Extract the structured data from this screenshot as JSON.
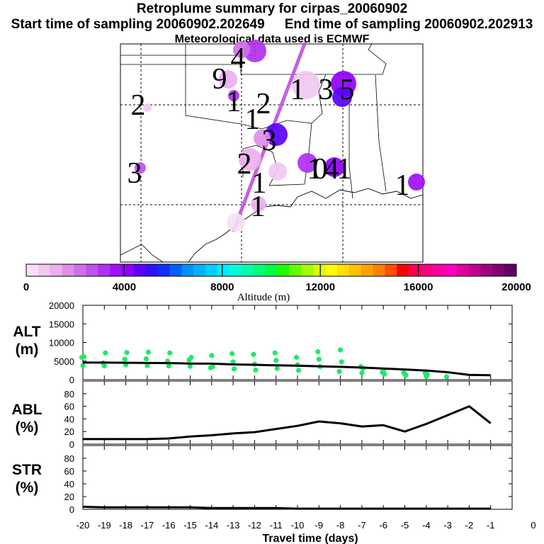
{
  "title": "Retroplume summary for cirpas_20060902",
  "start_text": "Start time of sampling 20060902.202649",
  "end_text": "End time of sampling 20060902.202913",
  "met_text": "Meteorological data used is ECMWF",
  "colorbar": {
    "label": "Altitude (m)",
    "ticks": [
      "0",
      "4000",
      "8000",
      "12000",
      "16000",
      "20000"
    ],
    "colors": [
      "#f7e0f7",
      "#f1c8f1",
      "#ebb0ed",
      "#e08ee8",
      "#d070e8",
      "#c050f0",
      "#b030f4",
      "#a010f8",
      "#9000ff",
      "#5a00ff",
      "#3010ff",
      "#1030ff",
      "#0060ff",
      "#0090ff",
      "#00b0ff",
      "#00d0ff",
      "#00ecff",
      "#00ffd8",
      "#00ffa8",
      "#00ff78",
      "#00ff40",
      "#20ff00",
      "#60ff00",
      "#a0ff00",
      "#d8ff00",
      "#ffff00",
      "#ffe000",
      "#ffc000",
      "#ffa000",
      "#ff8000",
      "#ff5000",
      "#ff0000",
      "#ff0050",
      "#ff0080",
      "#ff00a0",
      "#ff00c0",
      "#e000a0",
      "#c00090",
      "#a00080",
      "#800070",
      "#600060"
    ]
  },
  "chart_data": [
    {
      "type": "scatter",
      "name": "plume-map",
      "labels": [
        "4",
        "2",
        "9",
        "1",
        "2",
        "1",
        "3",
        "2",
        "1",
        "3",
        "5",
        "4",
        "3",
        "1",
        "1",
        "0",
        "1",
        "1",
        "1"
      ],
      "path_color": "#c050e0"
    },
    {
      "type": "line+scatter",
      "name": "alt",
      "ylabel": [
        "ALT",
        "(m)"
      ],
      "yticks": [
        "20000",
        "15000",
        "10000",
        "5000",
        "0"
      ],
      "ylim": [
        0,
        20000
      ],
      "xlim": [
        -20,
        0
      ],
      "x": [
        -20,
        -19,
        -18,
        -17,
        -16,
        -15,
        -14,
        -13,
        -12,
        -11,
        -10,
        -9,
        -8,
        -7,
        -6,
        -5,
        -4,
        -3,
        -2,
        -1
      ],
      "values": [
        4600,
        4600,
        4550,
        4500,
        4450,
        4350,
        4300,
        4100,
        4000,
        3850,
        3750,
        3600,
        3450,
        3250,
        3000,
        2750,
        2450,
        2000,
        1300,
        1200
      ],
      "point_color": "#22e86a",
      "scatter_values": [
        6000,
        3800,
        6200,
        4500,
        3700,
        7200,
        5500,
        4000,
        7300,
        5600,
        3800,
        7400,
        5000,
        3700,
        7200,
        5300,
        3600,
        6000,
        3200,
        6500,
        3500,
        7000,
        4800,
        2900,
        6800,
        4200,
        2600,
        7200,
        5200,
        3000,
        6000,
        4000,
        2500,
        7500,
        5500,
        3500,
        2200,
        8000,
        4800,
        3500,
        1800,
        3000,
        2000,
        2500,
        1500,
        2000,
        1500,
        1200,
        1800,
        900,
        1400,
        800
      ]
    },
    {
      "type": "line",
      "name": "abl",
      "ylabel": [
        "ABL",
        "(%)"
      ],
      "yticks": [
        "80",
        "60",
        "40",
        "20",
        "0"
      ],
      "ylim": [
        0,
        100
      ],
      "xlim": [
        -20,
        0
      ],
      "x": [
        -20,
        -19,
        -18,
        -17,
        -16,
        -15,
        -14,
        -13,
        -12,
        -11,
        -10,
        -9,
        -8,
        -7,
        -6,
        -5,
        -4,
        -3,
        -2,
        -1
      ],
      "values": [
        8,
        8,
        8,
        8,
        9,
        12,
        14,
        17,
        19,
        24,
        29,
        36,
        33,
        28,
        30,
        20,
        32,
        46,
        60,
        33
      ]
    },
    {
      "type": "line",
      "name": "str",
      "ylabel": [
        "STR",
        "(%)"
      ],
      "yticks": [
        "80",
        "60",
        "40",
        "20",
        "0"
      ],
      "ylim": [
        0,
        100
      ],
      "xlim": [
        -20,
        0
      ],
      "x": [
        -20,
        -19,
        -18,
        -17,
        -16,
        -15,
        -14,
        -13,
        -12,
        -11,
        -10,
        -9,
        -8,
        -7,
        -6,
        -5,
        -4,
        -3,
        -2,
        -1
      ],
      "values": [
        4,
        3,
        3,
        3,
        3,
        3,
        2,
        2,
        2,
        2,
        1,
        1,
        1,
        1,
        1,
        1,
        1,
        1,
        1,
        1
      ]
    }
  ],
  "xaxis": {
    "label": "Travel time (days)",
    "ticks": [
      "-20",
      "-19",
      "-18",
      "-17",
      "-16",
      "-15",
      "-14",
      "-13",
      "-12",
      "-11",
      "-10",
      "-9",
      "-8",
      "-7",
      "-6",
      "-5",
      "-4",
      "-3",
      "-2",
      "-1",
      "0"
    ]
  }
}
